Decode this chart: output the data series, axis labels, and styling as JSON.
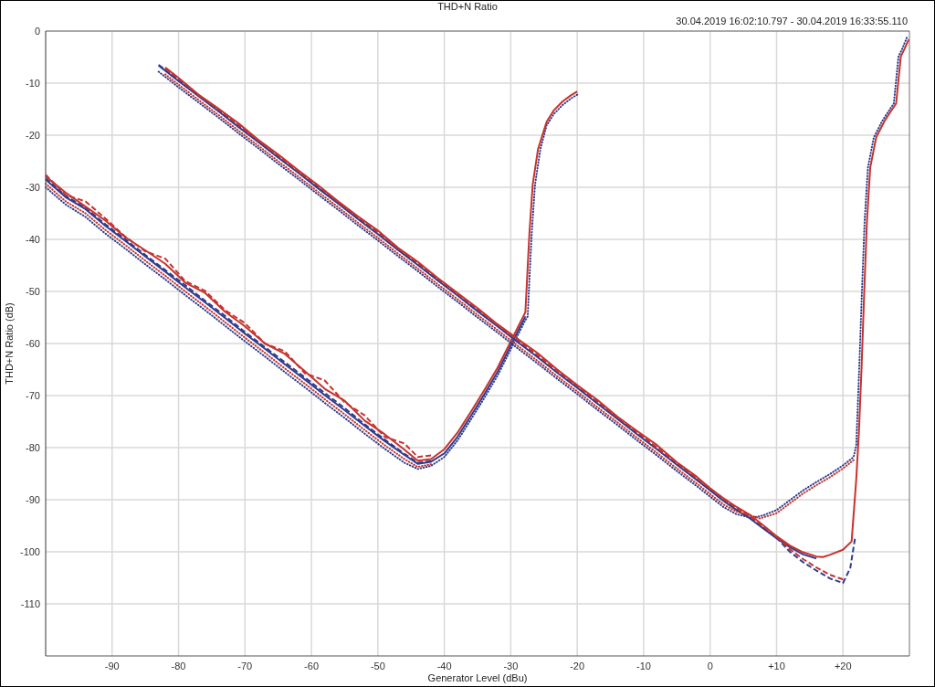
{
  "chart_data": {
    "type": "line",
    "title": "THD+N Ratio",
    "subtitle": "30.04.2019 16:02:10.797 - 30.04.2019 16:33:55.110",
    "xlabel": "Generator Level (dBu)",
    "ylabel": "THD+N Ratio (dB)",
    "xlim": [
      -100,
      30
    ],
    "xticks": [
      -90,
      -80,
      -70,
      -60,
      -50,
      -40,
      -30,
      -20,
      -10,
      0,
      {
        "value": 10,
        "label": "+10"
      },
      {
        "value": 20,
        "label": "+20"
      }
    ],
    "ylim": [
      -120,
      0
    ],
    "yticks": [
      0,
      -10,
      -20,
      -30,
      -40,
      -50,
      -60,
      -70,
      -80,
      -90,
      -100,
      -110
    ],
    "grid": true,
    "series": [
      {
        "color": "#2e3d8f",
        "line_style": "dotted",
        "x": [
          -100,
          -97,
          -94,
          -91,
          -88,
          -85,
          -82,
          -79,
          -76,
          -73,
          -70,
          -67,
          -64,
          -61,
          -58,
          -55,
          -52,
          -49,
          -46,
          -44,
          -42,
          -40,
          -38,
          -36,
          -34,
          -32,
          -30,
          -28,
          -27.45,
          -27.15,
          -26.85,
          -26.35,
          -25.55,
          -24.6,
          -23.5,
          -22.2,
          -21,
          -20
        ],
        "values": [
          -30.0,
          -33.3,
          -35.7,
          -38.9,
          -41.8,
          -44.8,
          -47.7,
          -50.7,
          -53.6,
          -56.6,
          -59.6,
          -62.5,
          -65.5,
          -68.4,
          -71.4,
          -74.3,
          -77.3,
          -80.2,
          -82.9,
          -84.1,
          -83.5,
          -81.8,
          -78.6,
          -74.6,
          -70.5,
          -66.2,
          -61.1,
          -56.0,
          -54.8,
          -46.5,
          -39.0,
          -29.5,
          -22.7,
          -18.1,
          -15.9,
          -14.2,
          -13.0,
          -12.2
        ]
      },
      {
        "color": "#2e3d8f",
        "line_style": "dashed",
        "x": [
          -100,
          -97,
          -94,
          -91,
          -88,
          -85,
          -82,
          -79,
          -76,
          -73,
          -70,
          -67,
          -64,
          -61,
          -58,
          -55,
          -52,
          -49,
          -46,
          -44,
          -42
        ],
        "values": [
          -28.3,
          -31.6,
          -34.0,
          -37.1,
          -40.0,
          -43.0,
          -45.9,
          -48.8,
          -51.8,
          -54.7,
          -57.8,
          -60.7,
          -63.6,
          -66.5,
          -69.5,
          -72.4,
          -75.5,
          -78.4,
          -81.2,
          -82.9,
          -82.6
        ]
      },
      {
        "color": "#2e3d8f",
        "line_style": "solid",
        "x": [
          -100,
          -97,
          -94,
          -91,
          -88,
          -85,
          -82,
          -79,
          -76,
          -73,
          -70,
          -67,
          -64,
          -61,
          -58,
          -55,
          -52,
          -49,
          -46,
          -44,
          -42,
          -40,
          -38,
          -36,
          -34,
          -32,
          -30,
          -28,
          -27.8
        ],
        "values": [
          -28.5,
          -31.9,
          -34.2,
          -37.4,
          -40.3,
          -43.3,
          -46.2,
          -49.2,
          -52.1,
          -55.1,
          -58.1,
          -61.0,
          -64.0,
          -66.9,
          -69.9,
          -72.8,
          -75.8,
          -78.7,
          -81.4,
          -83.1,
          -82.7,
          -81.1,
          -77.9,
          -73.9,
          -69.8,
          -65.5,
          -60.4,
          -55.3,
          -54.8
        ]
      },
      {
        "color": "#c8322c",
        "line_style": "dotted",
        "x": [
          -100,
          -97,
          -94,
          -91,
          -88,
          -85,
          -82,
          -79,
          -76,
          -73,
          -70,
          -67,
          -64,
          -61,
          -58,
          -55,
          -52,
          -49,
          -46,
          -44,
          -42
        ],
        "values": [
          -29.3,
          -32.7,
          -35.0,
          -38.2,
          -41.1,
          -44.1,
          -47.0,
          -50.0,
          -52.9,
          -55.9,
          -58.9,
          -61.8,
          -64.8,
          -67.7,
          -70.7,
          -73.6,
          -76.6,
          -79.5,
          -82.2,
          -83.7,
          -83.2
        ]
      },
      {
        "color": "#c8322c",
        "line_style": "dashed",
        "x": [
          -100,
          -97,
          -94,
          -91,
          -88,
          -85,
          -82,
          -79,
          -76,
          -73,
          -70,
          -67,
          -64,
          -61,
          -58,
          -55,
          -52,
          -49,
          -46,
          -44,
          -42
        ],
        "values": [
          -27.6,
          -31.5,
          -32.7,
          -36.0,
          -39.5,
          -42.3,
          -43.7,
          -48.0,
          -49.9,
          -53.6,
          -56.1,
          -60.0,
          -61.5,
          -65.7,
          -67.1,
          -71.3,
          -73.8,
          -77.9,
          -79.2,
          -81.8,
          -81.5
        ]
      },
      {
        "color": "#c8322c",
        "line_style": "solid",
        "x": [
          -100,
          -97,
          -94,
          -91,
          -88,
          -85,
          -82,
          -79,
          -76,
          -73,
          -70,
          -67,
          -64,
          -61,
          -58,
          -55,
          -52,
          -49,
          -46,
          -44,
          -42,
          -40,
          -38,
          -36,
          -34,
          -32,
          -30,
          -28,
          -27.8,
          -27.5,
          -27.2,
          -26.7,
          -25.9,
          -24.6,
          -23.5,
          -22.2,
          -21,
          -20
        ],
        "values": [
          -27.9,
          -31.0,
          -33.7,
          -36.4,
          -39.6,
          -42.1,
          -44.7,
          -48.3,
          -50.3,
          -53.9,
          -56.7,
          -60.0,
          -62.0,
          -65.3,
          -68.7,
          -71.0,
          -74.8,
          -77.4,
          -80.4,
          -82.5,
          -82.2,
          -80.3,
          -77.1,
          -73.1,
          -69.0,
          -64.7,
          -59.6,
          -54.5,
          -54.0,
          -46.5,
          -39.0,
          -29.5,
          -22.7,
          -17.4,
          -15.2,
          -13.5,
          -12.4,
          -11.6
        ]
      },
      {
        "color": "#2e3d8f",
        "line_style": "dotted",
        "x": [
          -83,
          -80,
          -77,
          -74,
          -71,
          -68,
          -65,
          -62,
          -59,
          -56,
          -53,
          -50,
          -47,
          -44,
          -41,
          -38,
          -35,
          -32,
          -29,
          -26,
          -23,
          -20,
          -17,
          -14,
          -11,
          -8,
          -5,
          -2,
          0,
          2,
          4,
          6,
          7,
          8,
          10,
          12,
          14,
          16,
          18,
          20,
          21.6,
          22.0,
          22.45,
          22.85,
          23.25,
          23.75,
          24.65,
          25.85,
          26.65,
          27.65,
          28.35,
          28.95,
          29.6
        ],
        "values": [
          -7.8,
          -10.8,
          -13.7,
          -16.6,
          -19.6,
          -22.5,
          -25.5,
          -28.4,
          -31.4,
          -34.3,
          -37.3,
          -40.2,
          -43.2,
          -46.1,
          -49.1,
          -52.0,
          -55.0,
          -57.9,
          -60.9,
          -63.8,
          -66.8,
          -69.7,
          -72.7,
          -75.6,
          -78.6,
          -81.5,
          -84.5,
          -87.4,
          -89.4,
          -91.4,
          -92.8,
          -93.4,
          -93.3,
          -93.0,
          -92.0,
          -90.1,
          -88.2,
          -86.6,
          -85.1,
          -83.4,
          -81.8,
          -79.5,
          -64.5,
          -50.0,
          -36.6,
          -26.2,
          -20.4,
          -17.4,
          -15.8,
          -13.9,
          -4.9,
          -3.3,
          -1.3
        ]
      },
      {
        "color": "#2e3d8f",
        "line_style": "dashed",
        "x": [
          -83,
          -80,
          -77,
          -74,
          -71,
          -68,
          -65,
          -62,
          -59,
          -56,
          -53,
          -50,
          -47,
          -44,
          -41,
          -38,
          -35,
          -32,
          -29,
          -26,
          -23,
          -20,
          -17,
          -14,
          -11,
          -8,
          -5,
          -2,
          0,
          2,
          4,
          6,
          8,
          10,
          12,
          14,
          16,
          18,
          20,
          21.1,
          21.8
        ],
        "values": [
          -6.5,
          -9.4,
          -12.4,
          -15.2,
          -18.3,
          -21.1,
          -24.2,
          -27.0,
          -30.1,
          -32.9,
          -36.0,
          -38.8,
          -41.9,
          -44.7,
          -47.8,
          -50.6,
          -53.7,
          -56.5,
          -59.6,
          -62.4,
          -65.5,
          -68.3,
          -71.4,
          -74.2,
          -77.3,
          -80.1,
          -83.2,
          -86.0,
          -88.1,
          -90.0,
          -91.9,
          -93.5,
          -95.4,
          -97.3,
          -100.0,
          -102.0,
          -103.6,
          -105.1,
          -106.0,
          -103.1,
          -97.5
        ]
      },
      {
        "color": "#2e3d8f",
        "line_style": "solid",
        "x": [
          -83,
          -80,
          -77,
          -74,
          -71,
          -68,
          -65,
          -62,
          -59,
          -56,
          -53,
          -50,
          -47,
          -44,
          -41,
          -38,
          -35,
          -32,
          -29,
          -26,
          -23,
          -20,
          -17,
          -14,
          -11,
          -8,
          -5,
          -2,
          0,
          2,
          4,
          6,
          8,
          10,
          12,
          14,
          16
        ],
        "values": [
          -6.6,
          -9.6,
          -12.5,
          -15.4,
          -18.4,
          -21.3,
          -24.3,
          -27.2,
          -30.2,
          -33.1,
          -36.1,
          -39.0,
          -42.0,
          -44.9,
          -47.9,
          -50.8,
          -53.8,
          -56.7,
          -59.7,
          -62.6,
          -65.6,
          -68.5,
          -71.5,
          -74.4,
          -77.4,
          -80.3,
          -83.3,
          -86.2,
          -88.2,
          -90.2,
          -92.0,
          -93.6,
          -95.5,
          -97.4,
          -99.1,
          -100.5,
          -101.3
        ]
      },
      {
        "color": "#c8322c",
        "line_style": "dotted",
        "x": [
          -82,
          -80,
          -77,
          -74,
          -71,
          -68,
          -65,
          -62,
          -59,
          -56,
          -53,
          -50,
          -47,
          -44,
          -41,
          -38,
          -35,
          -32,
          -29,
          -26,
          -23,
          -20,
          -17,
          -14,
          -11,
          -8,
          -5,
          -2,
          0,
          2,
          4,
          6,
          7.5,
          10,
          12,
          14,
          16,
          18,
          20,
          21.6
        ],
        "values": [
          -8.3,
          -10.3,
          -13.2,
          -16.1,
          -19.1,
          -22.0,
          -25.0,
          -27.9,
          -30.9,
          -33.8,
          -36.8,
          -39.7,
          -42.7,
          -45.6,
          -48.6,
          -51.5,
          -54.5,
          -57.4,
          -60.4,
          -63.3,
          -66.3,
          -69.2,
          -72.2,
          -75.1,
          -78.1,
          -81.0,
          -84.0,
          -86.9,
          -88.9,
          -90.9,
          -92.3,
          -93.0,
          -93.6,
          -92.6,
          -90.7,
          -88.8,
          -87.2,
          -85.7,
          -84.0,
          -82.4
        ]
      },
      {
        "color": "#c8322c",
        "line_style": "dashed",
        "x": [
          -82,
          -80,
          -77,
          -74,
          -71,
          -68,
          -65,
          -62,
          -59,
          -56,
          -53,
          -50,
          -47,
          -44,
          -41,
          -38,
          -35,
          -32,
          -29,
          -26,
          -23,
          -20,
          -17,
          -14,
          -11,
          -8,
          -5,
          -2,
          0,
          2,
          4,
          6,
          8,
          10,
          12,
          14,
          16,
          18,
          20
        ],
        "values": [
          -7.2,
          -9.1,
          -12.3,
          -15.0,
          -18.0,
          -21.0,
          -23.9,
          -26.9,
          -29.7,
          -32.8,
          -35.7,
          -38.6,
          -41.7,
          -44.5,
          -47.5,
          -50.5,
          -53.4,
          -56.4,
          -59.3,
          -62.2,
          -65.3,
          -68.1,
          -71.1,
          -74.1,
          -77.0,
          -80.0,
          -82.9,
          -85.9,
          -87.8,
          -89.9,
          -91.6,
          -93.2,
          -95.1,
          -97.1,
          -99.5,
          -101.4,
          -103.0,
          -104.4,
          -105.3
        ]
      },
      {
        "color": "#c8322c",
        "line_style": "solid",
        "x": [
          -82,
          -80,
          -77,
          -74,
          -71,
          -68,
          -65,
          -62,
          -59,
          -56,
          -53,
          -50,
          -47,
          -44,
          -41,
          -38,
          -35,
          -32,
          -29,
          -26,
          -23,
          -20,
          -17,
          -14,
          -11,
          -8,
          -5,
          -2,
          0,
          2,
          4,
          6,
          8,
          10,
          12,
          14,
          16,
          17,
          18,
          20,
          21.3,
          22,
          22.4,
          22.8,
          23.2,
          23.6,
          24.1,
          25,
          26.2,
          27,
          28,
          28.7,
          29.3,
          29.9
        ],
        "values": [
          -7.0,
          -9.0,
          -12.2,
          -14.9,
          -17.7,
          -20.9,
          -23.7,
          -26.7,
          -29.6,
          -32.7,
          -35.6,
          -38.3,
          -41.6,
          -44.3,
          -47.4,
          -50.3,
          -53.2,
          -56.3,
          -59.1,
          -61.8,
          -65.0,
          -68.0,
          -70.8,
          -74.0,
          -76.8,
          -79.5,
          -82.8,
          -85.6,
          -87.8,
          -89.7,
          -91.4,
          -92.9,
          -94.9,
          -97.0,
          -98.8,
          -100.1,
          -100.9,
          -101.0,
          -100.6,
          -99.6,
          -98.0,
          -86.0,
          -77.0,
          -64.5,
          -50.0,
          -36.6,
          -26.2,
          -20.4,
          -17.4,
          -15.8,
          -13.9,
          -4.9,
          -3.3,
          -1.6
        ]
      }
    ]
  }
}
